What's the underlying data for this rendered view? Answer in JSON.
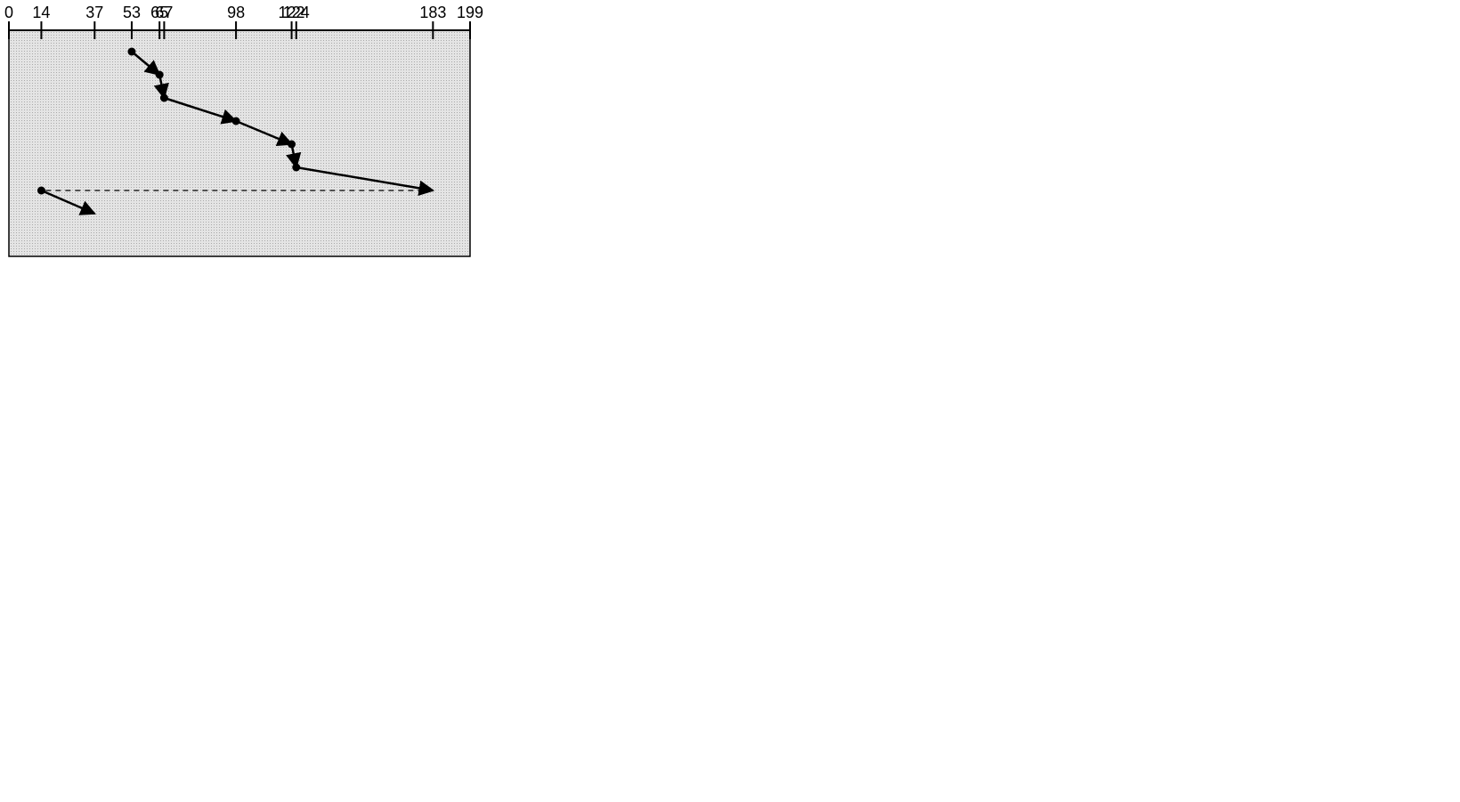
{
  "diagram": {
    "axis": {
      "min": 0,
      "max": 199,
      "ticks": [
        {
          "value": 0,
          "label": "0"
        },
        {
          "value": 14,
          "label": "14"
        },
        {
          "value": 37,
          "label": "37"
        },
        {
          "value": 53,
          "label": "53"
        },
        {
          "value": 65,
          "label": "65"
        },
        {
          "value": 67,
          "label": "67"
        },
        {
          "value": 98,
          "label": "98"
        },
        {
          "value": 122,
          "label": "122"
        },
        {
          "value": 124,
          "label": "124"
        },
        {
          "value": 183,
          "label": "183"
        },
        {
          "value": 199,
          "label": "199"
        }
      ]
    },
    "requests": [
      {
        "from": 53,
        "to": 65
      },
      {
        "from": 65,
        "to": 67
      },
      {
        "from": 67,
        "to": 98
      },
      {
        "from": 98,
        "to": 122
      },
      {
        "from": 122,
        "to": 124
      },
      {
        "from": 124,
        "to": 183
      },
      {
        "from": 14,
        "to": 37
      }
    ],
    "return_jump": {
      "from": 183,
      "to": 14,
      "style": "dashed"
    },
    "colors": {
      "plot_background": "#d6d6d6",
      "line": "#000000",
      "page_background": "#ffffff"
    }
  }
}
